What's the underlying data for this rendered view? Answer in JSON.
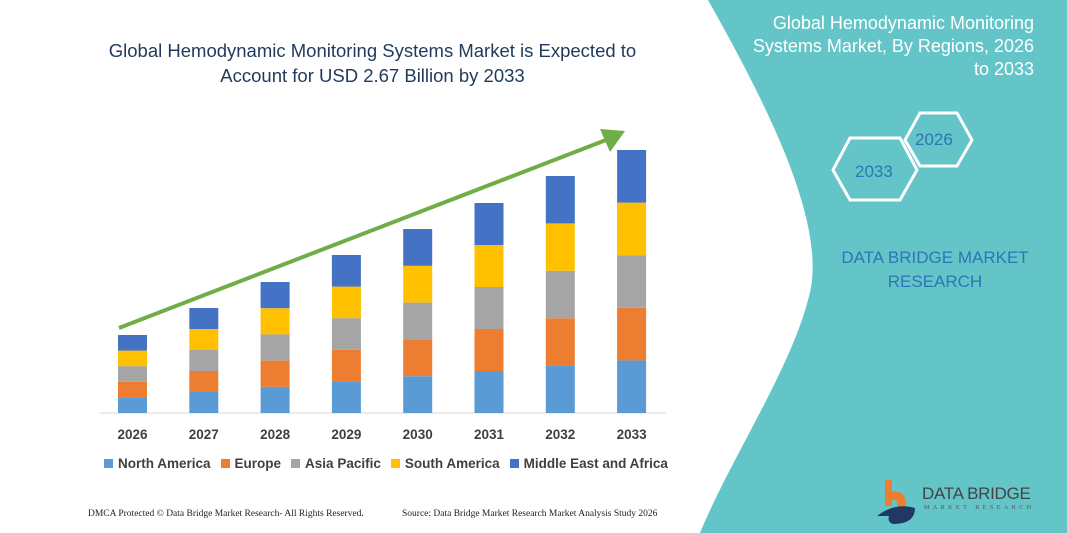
{
  "title": "Global Hemodynamic Monitoring Systems Market is Expected to Account for USD 2.67 Billion by 2033",
  "side_panel": {
    "title": "Global Hemodynamic Monitoring Systems Market, By Regions, 2026 to 2033",
    "hex_start": "2026",
    "hex_end": "2033",
    "brand_line1": "DATA BRIDGE MARKET",
    "brand_line2": "RESEARCH",
    "panel_color": "#63c5c8"
  },
  "logo": {
    "text": "DATA BRIDGE",
    "subtext": "MARKET RESEARCH"
  },
  "footer": {
    "left": "DMCA Protected © Data Bridge Market Research- All Rights Reserved.",
    "right": "Source: Data Bridge Market Research  Market Analysis Study 2026"
  },
  "chart_data": {
    "type": "bar",
    "stacked": true,
    "categories": [
      "2026",
      "2027",
      "2028",
      "2029",
      "2030",
      "2031",
      "2032",
      "2033"
    ],
    "series": [
      {
        "name": "North America",
        "color": "#5b9bd5",
        "values": [
          15.6,
          21,
          26.2,
          31.6,
          36.8,
          42,
          47.4,
          52.6
        ]
      },
      {
        "name": "Europe",
        "color": "#ed7d31",
        "values": [
          15.6,
          21,
          26.2,
          31.6,
          36.8,
          42,
          47.4,
          52.6
        ]
      },
      {
        "name": "Asia Pacific",
        "color": "#a5a5a5",
        "values": [
          15.6,
          21,
          26.2,
          31.6,
          36.8,
          42,
          47.4,
          52.6
        ]
      },
      {
        "name": "South America",
        "color": "#ffc000",
        "values": [
          15.6,
          21,
          26.2,
          31.6,
          36.8,
          42,
          47.4,
          52.6
        ]
      },
      {
        "name": "Middle East and Africa",
        "color": "#4472c4",
        "values": [
          15.6,
          21,
          26.2,
          31.6,
          36.8,
          42,
          47.4,
          52.6
        ]
      }
    ],
    "ylim": [
      0,
      270
    ],
    "grid": false,
    "y_axis_shown": false,
    "legend": "bottom",
    "trend_arrow_color": "#70ad47"
  }
}
